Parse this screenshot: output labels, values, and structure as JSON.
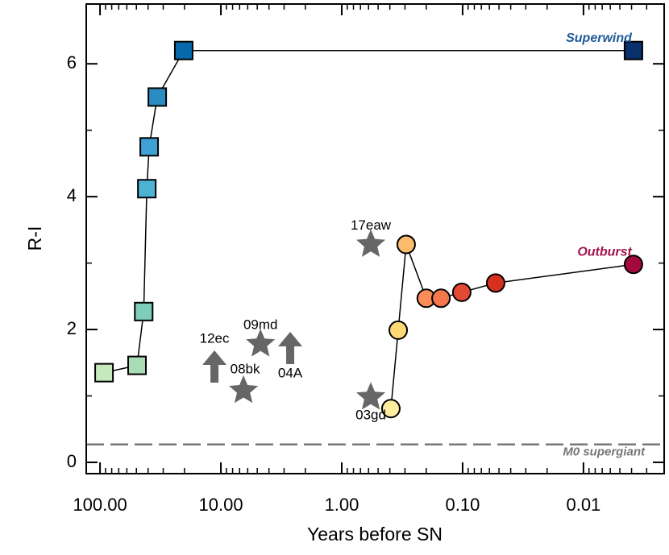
{
  "chart_data": {
    "type": "scatter",
    "xlabel": "Years before SN",
    "ylabel": "R-I",
    "xlog": true,
    "xlim": [
      130,
      0.00215
    ],
    "ylim": [
      -0.17,
      6.9
    ],
    "xticks": [
      {
        "value": 100,
        "label": "100.00"
      },
      {
        "value": 10,
        "label": "10.00"
      },
      {
        "value": 1,
        "label": "1.00"
      },
      {
        "value": 0.1,
        "label": "0.10"
      },
      {
        "value": 0.01,
        "label": "0.01"
      }
    ],
    "yticks": [
      0,
      2,
      4,
      6
    ],
    "series": [
      {
        "name": "Superwind",
        "color": "#1f5a99",
        "marker": "square",
        "connect": true,
        "colors": [
          "#c7e9c0",
          "#a8ddb5",
          "#7fcdbb",
          "#4eb3d3",
          "#3fa0d6",
          "#2b8cc4",
          "#0868ac",
          "#08306b"
        ],
        "x": [
          92.6,
          49.4,
          43.5,
          41,
          39.2,
          33.6,
          20.3,
          0.00386
        ],
        "values": [
          1.35,
          1.46,
          2.27,
          4.12,
          4.75,
          5.5,
          6.2,
          6.2
        ]
      },
      {
        "name": "Outburst",
        "color": "#a3154a",
        "marker": "circle",
        "connect": true,
        "colors": [
          "#ffeda0",
          "#fed976",
          "#fdbb6c",
          "#fc8d59",
          "#f4784c",
          "#e34a33",
          "#d7301f",
          "#a3083f"
        ],
        "x": [
          0.392,
          0.341,
          0.293,
          0.2,
          0.151,
          0.1016,
          0.0533,
          0.00386
        ],
        "values": [
          0.81,
          1.99,
          3.28,
          2.47,
          2.47,
          2.56,
          2.7,
          2.98
        ]
      },
      {
        "marker": "star",
        "color": "#666666",
        "x": [
          0.575,
          0.575,
          4.7,
          6.5
        ],
        "values": [
          3.28,
          0.98,
          1.78,
          1.08
        ],
        "labels": [
          "17eaw",
          "03gd",
          "09md",
          "08bk"
        ]
      },
      {
        "marker": "arrow",
        "color": "#666666",
        "x": [
          11.3,
          2.67
        ],
        "values": [
          1.2,
          1.48
        ],
        "labels": [
          "12ec",
          "04A"
        ]
      }
    ],
    "reference_line": {
      "y": 0.27,
      "label": "M0 supergiant",
      "color": "#777777"
    }
  }
}
